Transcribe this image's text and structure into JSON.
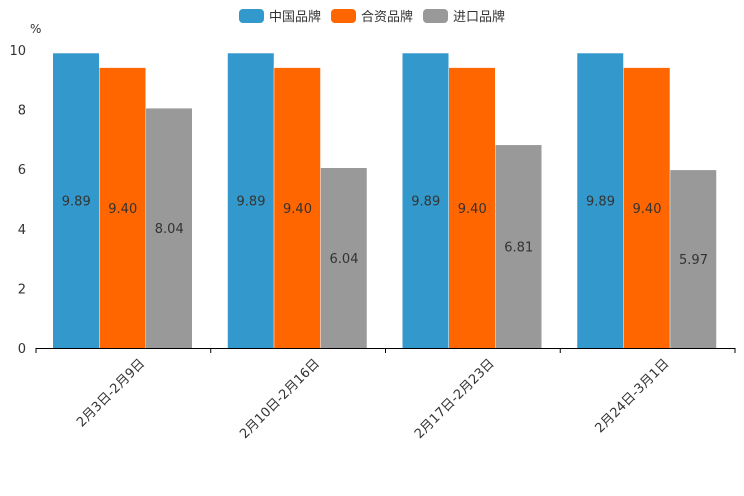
{
  "chart_data": {
    "type": "bar",
    "title": "",
    "xlabel": "",
    "ylabel": "%",
    "ylim": [
      0,
      10
    ],
    "yticks": [
      0,
      2,
      4,
      6,
      8,
      10
    ],
    "legend_position": "top-center",
    "categories": [
      "2月3日-2月9日",
      "2月10日-2月16日",
      "2月17日-2月23日",
      "2月24日-3月1日"
    ],
    "series": [
      {
        "name": "中国品牌",
        "color": "#3399cc",
        "values": [
          9.89,
          9.89,
          9.89,
          9.89
        ],
        "labels": [
          "9.89",
          "9.89",
          "9.89",
          "9.89"
        ]
      },
      {
        "name": "合资品牌",
        "color": "#ff6600",
        "values": [
          9.4,
          9.4,
          9.4,
          9.4
        ],
        "labels": [
          "9.40",
          "9.40",
          "9.40",
          "9.40"
        ]
      },
      {
        "name": "进口品牌",
        "color": "#999999",
        "values": [
          8.04,
          6.04,
          6.81,
          5.97
        ],
        "labels": [
          "8.04",
          "6.04",
          "6.81",
          "5.97"
        ]
      }
    ]
  }
}
